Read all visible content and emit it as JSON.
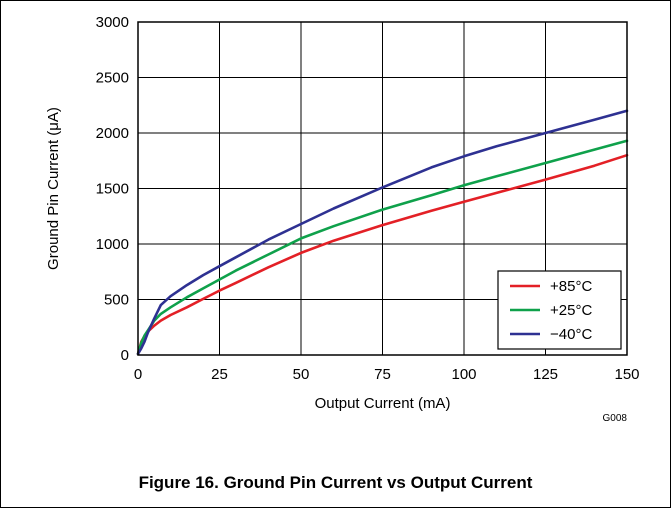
{
  "chart_data": {
    "type": "line",
    "title": "",
    "xlabel": "Output Current (mA)",
    "ylabel": "Ground Pin Current (μA)",
    "xlim": [
      0,
      150
    ],
    "ylim": [
      0,
      3000
    ],
    "x_ticks": [
      0,
      25,
      50,
      75,
      100,
      125,
      150
    ],
    "y_ticks": [
      0,
      500,
      1000,
      1500,
      2000,
      2500,
      3000
    ],
    "grid": true,
    "legend_position": "bottom-right",
    "annotation": "G008",
    "series": [
      {
        "name": "+85°C",
        "color": "#e32026",
        "x": [
          0,
          1,
          2,
          3,
          5,
          7,
          10,
          15,
          20,
          25,
          30,
          40,
          50,
          60,
          75,
          90,
          100,
          110,
          125,
          140,
          150
        ],
        "y": [
          10,
          120,
          170,
          210,
          265,
          310,
          360,
          430,
          505,
          580,
          650,
          790,
          920,
          1030,
          1170,
          1300,
          1380,
          1460,
          1580,
          1705,
          1800
        ]
      },
      {
        "name": "+25°C",
        "color": "#0fa14b",
        "x": [
          0,
          1,
          2,
          3,
          5,
          7,
          10,
          15,
          20,
          25,
          30,
          40,
          50,
          60,
          75,
          90,
          100,
          110,
          125,
          140,
          150
        ],
        "y": [
          10,
          110,
          175,
          220,
          310,
          370,
          430,
          520,
          600,
          680,
          760,
          905,
          1050,
          1160,
          1310,
          1440,
          1530,
          1610,
          1730,
          1850,
          1930
        ]
      },
      {
        "name": "−40°C",
        "color": "#2e3192",
        "x": [
          0,
          1,
          2,
          3,
          5,
          7,
          10,
          15,
          20,
          25,
          30,
          40,
          50,
          60,
          75,
          90,
          100,
          110,
          125,
          140,
          150
        ],
        "y": [
          10,
          60,
          120,
          200,
          330,
          450,
          530,
          630,
          720,
          800,
          880,
          1040,
          1180,
          1320,
          1510,
          1690,
          1790,
          1880,
          2000,
          2120,
          2200
        ]
      }
    ]
  },
  "caption": "Figure 16. Ground Pin Current vs Output Current"
}
